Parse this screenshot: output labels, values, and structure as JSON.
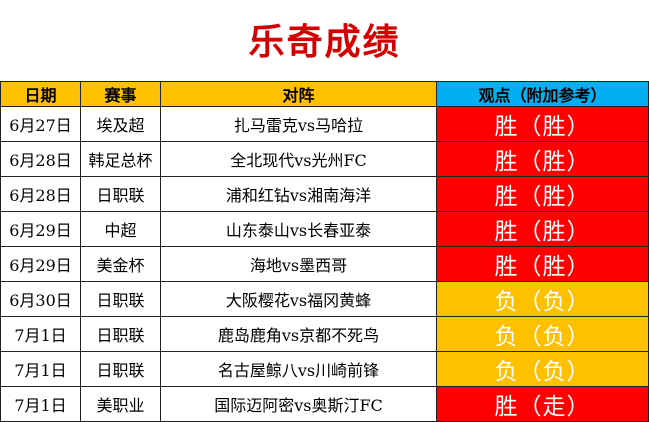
{
  "title": "乐奇成绩",
  "headers": {
    "date": "日期",
    "event": "赛事",
    "match": "对阵",
    "view": "观点（附加参考）"
  },
  "rows": [
    {
      "date": "6月27日",
      "event": "埃及超",
      "match": "扎马雷克vs马哈拉",
      "view": "胜（胜）",
      "outcome": "win"
    },
    {
      "date": "6月28日",
      "event": "韩足总杯",
      "match": "全北现代vs光州FC",
      "view": "胜（胜）",
      "outcome": "win"
    },
    {
      "date": "6月28日",
      "event": "日职联",
      "match": "浦和红钻vs湘南海洋",
      "view": "胜（胜）",
      "outcome": "win"
    },
    {
      "date": "6月29日",
      "event": "中超",
      "match": "山东泰山vs长春亚泰",
      "view": "胜（胜）",
      "outcome": "win"
    },
    {
      "date": "6月29日",
      "event": "美金杯",
      "match": "海地vs墨西哥",
      "view": "胜（胜）",
      "outcome": "win"
    },
    {
      "date": "6月30日",
      "event": "日职联",
      "match": "大阪樱花vs福冈黄蜂",
      "view": "负（负）",
      "outcome": "lose"
    },
    {
      "date": "7月1日",
      "event": "日职联",
      "match": "鹿岛鹿角vs京都不死鸟",
      "view": "负（负）",
      "outcome": "lose"
    },
    {
      "date": "7月1日",
      "event": "日职联",
      "match": "名古屋鲸八vs川崎前锋",
      "view": "负（负）",
      "outcome": "lose"
    },
    {
      "date": "7月1日",
      "event": "美职业",
      "match": "国际迈阿密vs奥斯汀FC",
      "view": "胜（走）",
      "outcome": "win"
    }
  ],
  "colors": {
    "title": "#d40000",
    "header": "#ffc000",
    "view_header": "#00b0f0",
    "win": "#ff0000",
    "lose": "#ffc000"
  }
}
